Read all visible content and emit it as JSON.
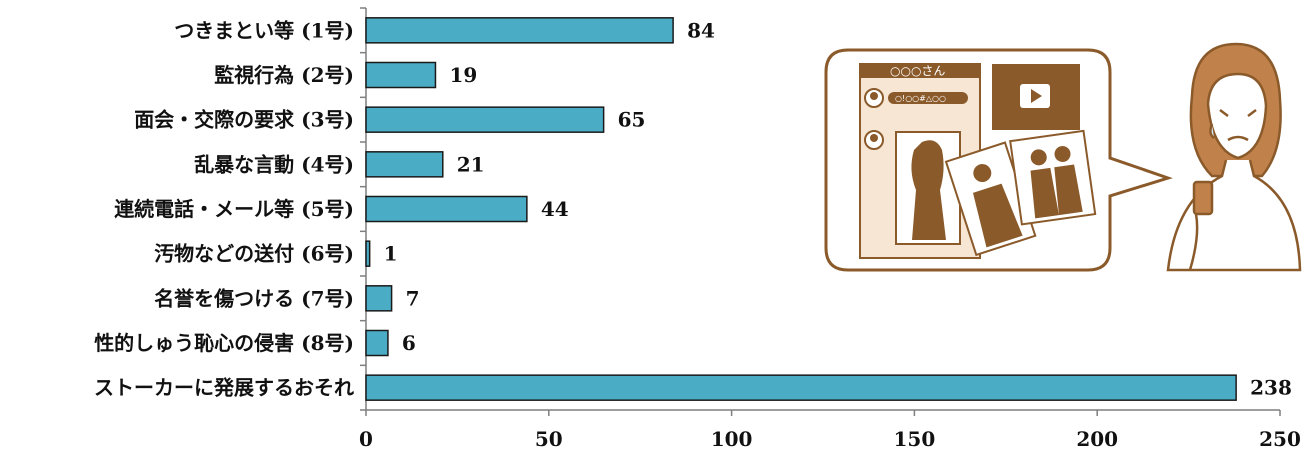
{
  "chart_data": {
    "type": "bar",
    "orientation": "horizontal",
    "categories": [
      "つきまとい等 (1号)",
      "監視行為 (2号)",
      "面会・交際の要求 (3号)",
      "乱暴な言動 (4号)",
      "連続電話・メール等 (5号)",
      "汚物などの送付 (6号)",
      "名誉を傷つける (7号)",
      "性的しゅう恥心の侵害 (8号)",
      "ストーカーに発展するおそれ"
    ],
    "values": [
      84,
      19,
      65,
      21,
      44,
      1,
      7,
      6,
      238
    ],
    "xlim": [
      0,
      250
    ],
    "xticks": [
      "0",
      "50",
      "100",
      "150",
      "200",
      "250"
    ],
    "bar_color": "#4bacc6",
    "bar_edge_color": "#1a1a1a",
    "grid": false,
    "legend": "none"
  },
  "illustration": {
    "chat_header_name": "○○○さん",
    "chat_message": "○!○○#△○○",
    "line_color": "#8b5a2b",
    "panel_color": "#f6e6d3"
  }
}
